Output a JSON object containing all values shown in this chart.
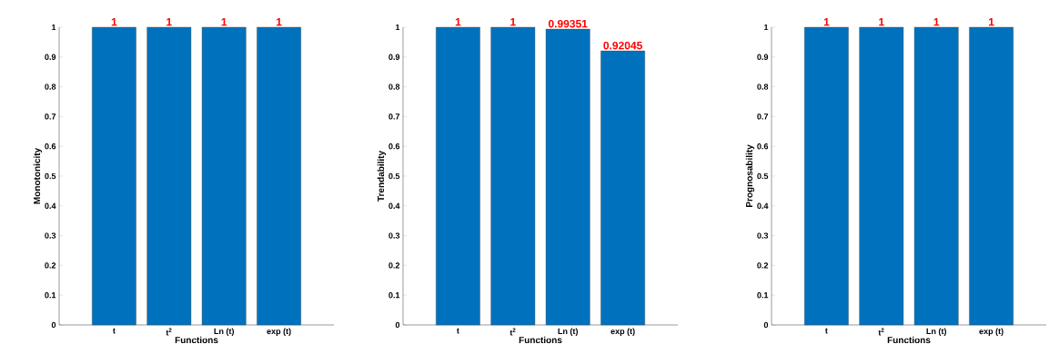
{
  "chart_data": [
    {
      "type": "bar",
      "categories": [
        "t",
        "t$^{2}$",
        "Ln (t)",
        "exp (t)"
      ],
      "values": [
        1,
        1,
        1,
        1
      ],
      "color": "#0072bd",
      "xlabel": "Functions",
      "ylabel": "Monotonicity",
      "ylim": [
        0,
        1
      ],
      "yticks": [
        0,
        0.1,
        0.2,
        0.3,
        0.4,
        0.5,
        0.6,
        0.7,
        0.8,
        0.9,
        1
      ],
      "data_labels": true
    },
    {
      "type": "bar",
      "categories": [
        "t",
        "t$^{2}$",
        "Ln (t)",
        "exp (t)"
      ],
      "values": [
        1,
        1,
        0.99351,
        0.92045
      ],
      "color": "#0072bd",
      "xlabel": "Functions",
      "ylabel": "Trendability",
      "ylim": [
        0,
        1
      ],
      "yticks": [
        0,
        0.1,
        0.2,
        0.3,
        0.4,
        0.5,
        0.6,
        0.7,
        0.8,
        0.9,
        1
      ],
      "data_labels": true
    },
    {
      "type": "bar",
      "categories": [
        "t",
        "t$^{2}$",
        "Ln (t)",
        "exp (t)"
      ],
      "values": [
        1,
        1,
        1,
        1
      ],
      "color": "#0072bd",
      "xlabel": "Functions",
      "ylabel": "Prognosability",
      "ylim": [
        0,
        1
      ],
      "yticks": [
        0,
        0.1,
        0.2,
        0.3,
        0.4,
        0.5,
        0.6,
        0.7,
        0.8,
        0.9,
        1
      ],
      "data_labels": true
    }
  ]
}
